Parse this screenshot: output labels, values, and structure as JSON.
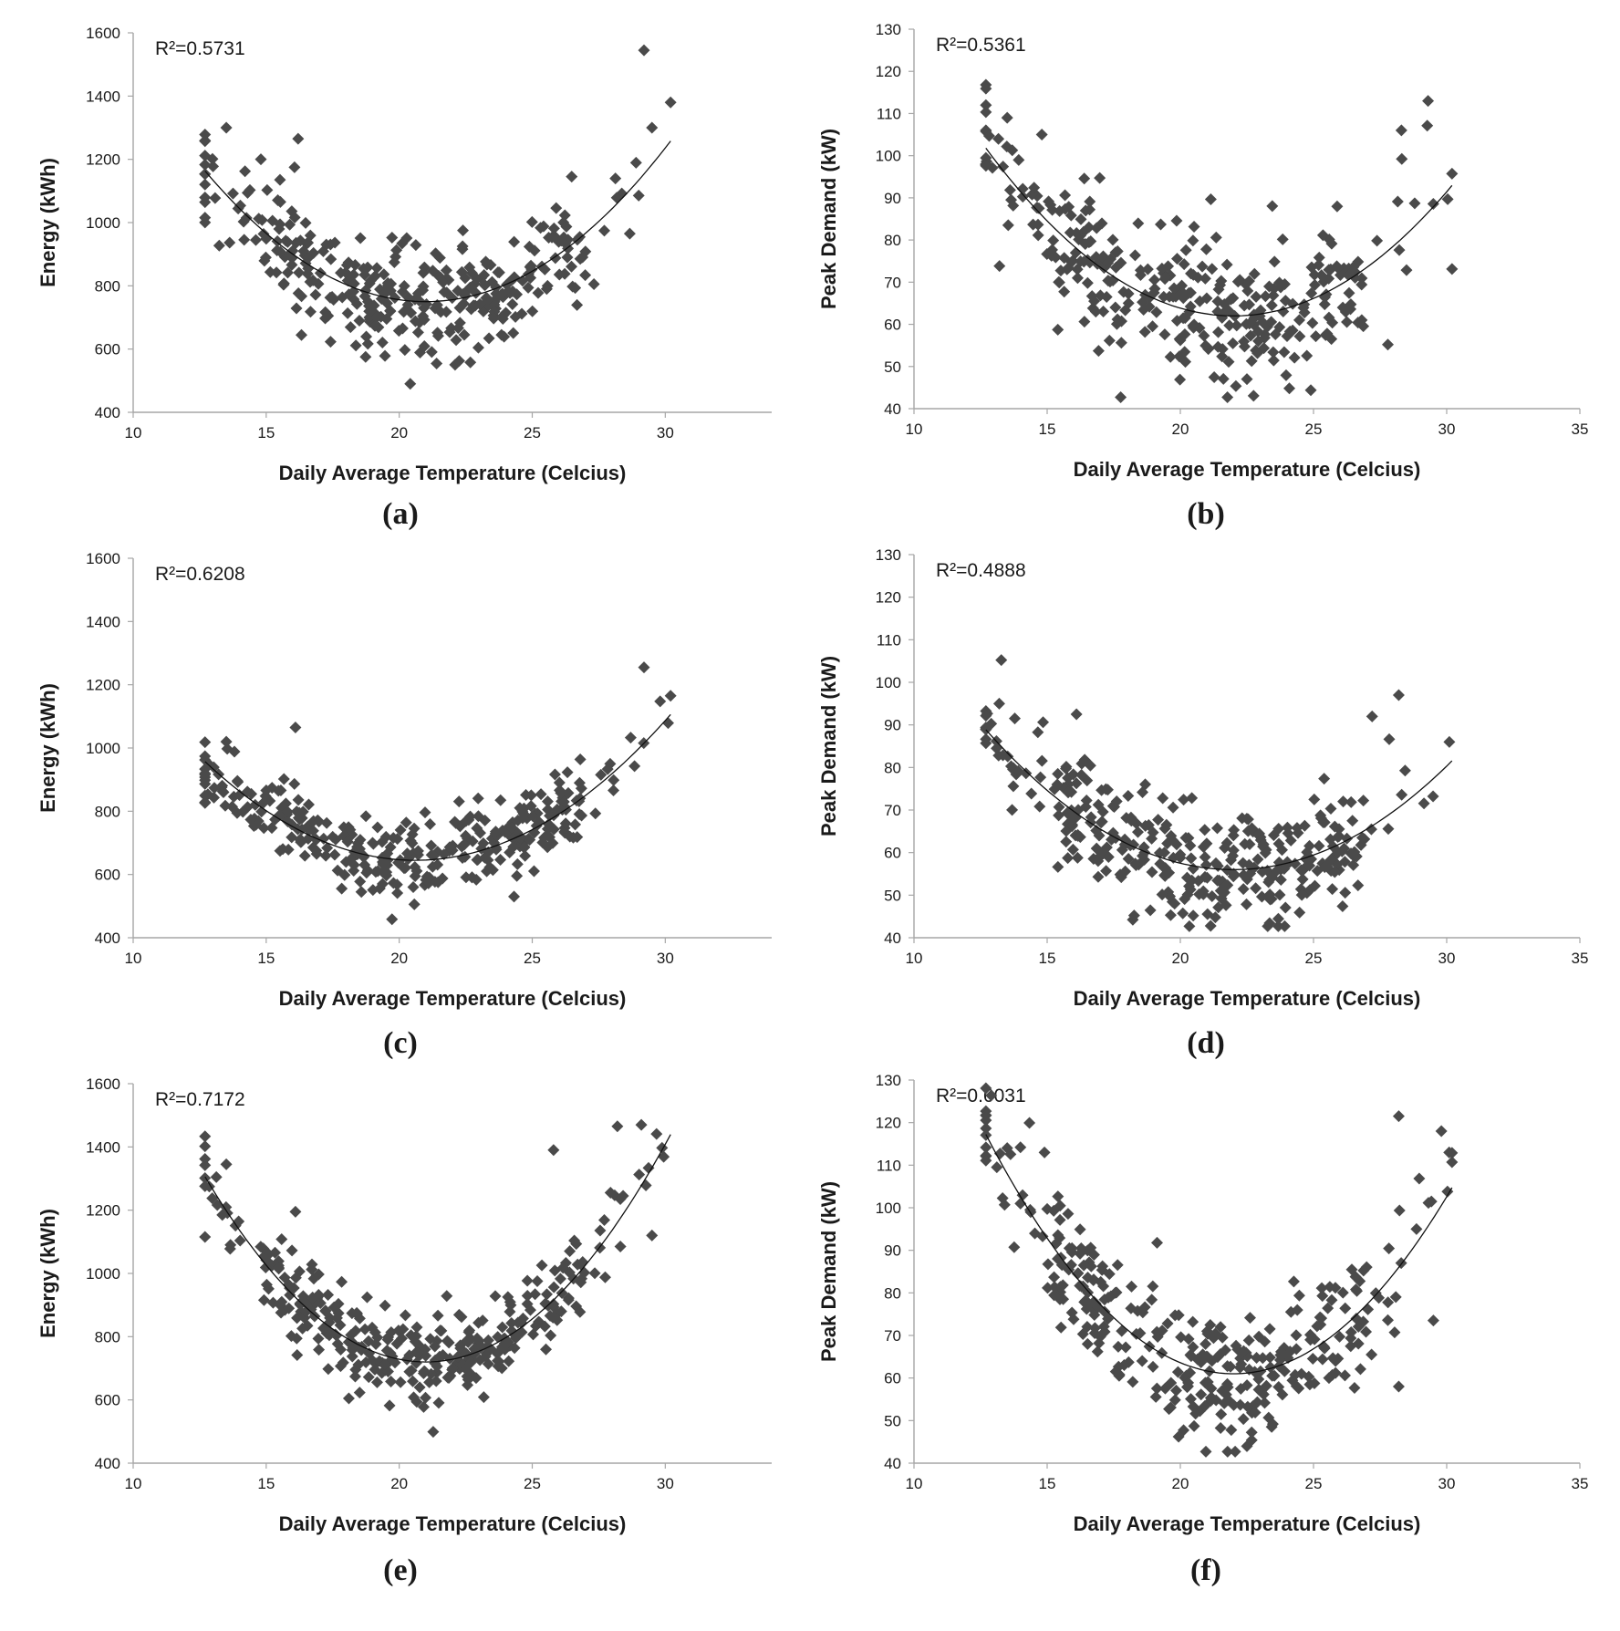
{
  "figure": {
    "panel_labels": [
      "(a)",
      "(b)",
      "(c)",
      "(d)",
      "(e)",
      "(f)"
    ]
  },
  "chart_data": [
    {
      "id": "a",
      "type": "scatter",
      "panel_label": "(a)",
      "xlabel": "Daily Average Temperature (Celcius)",
      "ylabel": "Energy (kWh)",
      "r2_label": "R²=0.5731",
      "xlim": [
        10,
        34
      ],
      "ylim": [
        400,
        1600
      ],
      "xticks": [
        10,
        15,
        20,
        25,
        30
      ],
      "yticks": [
        400,
        600,
        800,
        1000,
        1200,
        1400,
        1600
      ],
      "fit": {
        "type": "quadratic",
        "x_range": [
          12.7,
          30.2
        ],
        "vertex_x": 21,
        "vertex_y": 750,
        "a": 6.0
      },
      "scatter_seed": 11,
      "spread": 90,
      "outliers": [
        [
          13.5,
          1300
        ],
        [
          16.2,
          1265
        ],
        [
          29.2,
          1545
        ],
        [
          30.2,
          1380
        ],
        [
          29.5,
          1300
        ],
        [
          14.8,
          1200
        ]
      ]
    },
    {
      "id": "b",
      "type": "scatter",
      "panel_label": "(b)",
      "xlabel": "Daily Average Temperature (Celcius)",
      "ylabel": "Peak Demand (kW)",
      "r2_label": "R²=0.5361",
      "xlim": [
        10,
        35
      ],
      "ylim": [
        40,
        130
      ],
      "xticks": [
        10,
        15,
        20,
        25,
        30,
        35
      ],
      "yticks": [
        40,
        50,
        60,
        70,
        80,
        90,
        100,
        110,
        120,
        130
      ],
      "fit": {
        "type": "quadratic",
        "x_range": [
          12.7,
          30.2
        ],
        "vertex_x": 22,
        "vertex_y": 62,
        "a": 0.46
      },
      "scatter_seed": 23,
      "spread": 8,
      "outliers": [
        [
          13.5,
          109
        ],
        [
          29.3,
          113
        ],
        [
          14.8,
          105
        ],
        [
          28.3,
          106
        ],
        [
          22.5,
          47
        ]
      ]
    },
    {
      "id": "c",
      "type": "scatter",
      "panel_label": "(c)",
      "xlabel": "Daily Average Temperature (Celcius)",
      "ylabel": "Energy (kWh)",
      "r2_label": "R²=0.6208",
      "xlim": [
        10,
        34
      ],
      "ylim": [
        400,
        1600
      ],
      "xticks": [
        10,
        15,
        20,
        25,
        30
      ],
      "yticks": [
        400,
        600,
        800,
        1000,
        1200,
        1400,
        1600
      ],
      "fit": {
        "type": "quadratic",
        "x_range": [
          12.7,
          30.2
        ],
        "vertex_x": 20.6,
        "vertex_y": 645,
        "a": 5.0
      },
      "scatter_seed": 37,
      "spread": 65,
      "outliers": [
        [
          29.2,
          1255
        ],
        [
          16.1,
          1065
        ],
        [
          13.5,
          1020
        ],
        [
          30.2,
          1165
        ]
      ]
    },
    {
      "id": "d",
      "type": "scatter",
      "panel_label": "(d)",
      "xlabel": "Daily Average Temperature (Celcius)",
      "ylabel": "Peak Demand (kW)",
      "r2_label": "R²=0.4888",
      "xlim": [
        10,
        35
      ],
      "ylim": [
        40,
        130
      ],
      "xticks": [
        10,
        15,
        20,
        25,
        30,
        35
      ],
      "yticks": [
        40,
        50,
        60,
        70,
        80,
        90,
        100,
        110,
        120,
        130
      ],
      "fit": {
        "type": "quadratic",
        "x_range": [
          12.7,
          30.2
        ],
        "vertex_x": 22,
        "vertex_y": 56,
        "a": 0.38
      },
      "scatter_seed": 53,
      "spread": 7,
      "outliers": [
        [
          28.2,
          97
        ],
        [
          13.2,
          95
        ],
        [
          27.2,
          92
        ],
        [
          30.1,
          86
        ],
        [
          16.1,
          92.5
        ]
      ]
    },
    {
      "id": "e",
      "type": "scatter",
      "panel_label": "(e)",
      "xlabel": "Daily Average Temperature (Celcius)",
      "ylabel": "Energy (kWh)",
      "r2_label": "R²=0.7172",
      "xlim": [
        10,
        34
      ],
      "ylim": [
        400,
        1600
      ],
      "xticks": [
        10,
        15,
        20,
        25,
        30
      ],
      "yticks": [
        400,
        600,
        800,
        1000,
        1200,
        1400,
        1600
      ],
      "fit": {
        "type": "quadratic",
        "x_range": [
          12.7,
          30.2
        ],
        "vertex_x": 21,
        "vertex_y": 720,
        "a": 8.5
      },
      "scatter_seed": 71,
      "spread": 70,
      "outliers": [
        [
          25.8,
          1390
        ],
        [
          13.5,
          1345
        ],
        [
          28.2,
          1465
        ],
        [
          29.1,
          1470
        ],
        [
          16.1,
          1195
        ],
        [
          29.5,
          1120
        ]
      ]
    },
    {
      "id": "f",
      "type": "scatter",
      "panel_label": "(f)",
      "xlabel": "Daily Average Temperature (Celcius)",
      "ylabel": "Peak Demand (kW)",
      "r2_label": "R²=0.6031",
      "xlim": [
        10,
        35
      ],
      "ylim": [
        40,
        130
      ],
      "xticks": [
        10,
        15,
        20,
        25,
        30,
        35
      ],
      "yticks": [
        40,
        50,
        60,
        70,
        80,
        90,
        100,
        110,
        120,
        130
      ],
      "fit": {
        "type": "quadratic",
        "x_range": [
          12.7,
          30.2
        ],
        "vertex_x": 22,
        "vertex_y": 61,
        "a": 0.65
      },
      "scatter_seed": 89,
      "spread": 8,
      "outliers": [
        [
          28.2,
          121.5
        ],
        [
          29.8,
          118
        ],
        [
          13.5,
          114
        ],
        [
          14.9,
          113
        ],
        [
          28.2,
          58
        ],
        [
          29.5,
          73.5
        ],
        [
          22.5,
          44
        ]
      ]
    }
  ]
}
